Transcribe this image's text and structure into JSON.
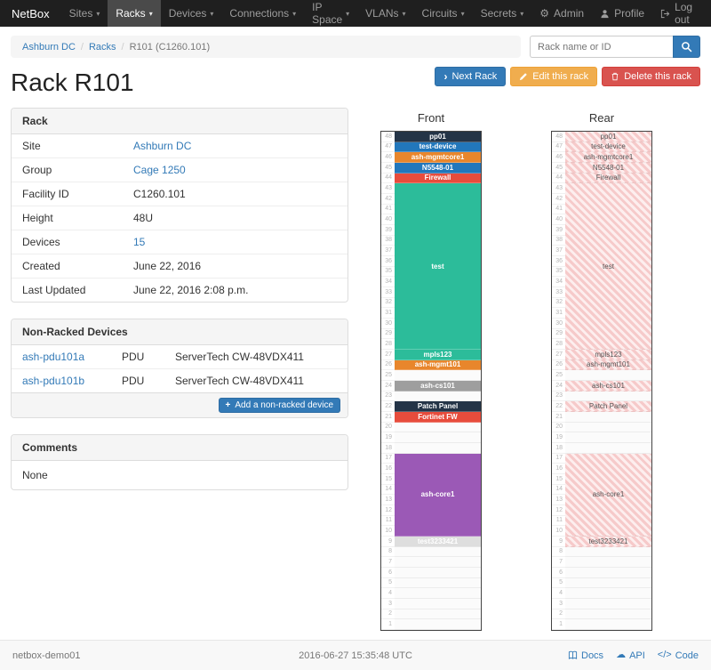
{
  "navbar": {
    "brand": "NetBox",
    "items": [
      {
        "label": "Sites"
      },
      {
        "label": "Racks",
        "active": true
      },
      {
        "label": "Devices"
      },
      {
        "label": "Connections"
      },
      {
        "label": "IP Space"
      },
      {
        "label": "VLANs"
      },
      {
        "label": "Circuits"
      },
      {
        "label": "Secrets"
      }
    ],
    "right": [
      {
        "label": "Admin",
        "icon": "gear-icon"
      },
      {
        "label": "Profile",
        "icon": "user-icon"
      },
      {
        "label": "Log out",
        "icon": "logout-icon"
      }
    ]
  },
  "breadcrumb": {
    "items": [
      {
        "label": "Ashburn DC",
        "link": true
      },
      {
        "label": "Racks",
        "link": true
      },
      {
        "label": "R101 (C1260.101)",
        "link": false
      }
    ]
  },
  "search": {
    "placeholder": "Rack name or ID",
    "icon": "search-icon"
  },
  "actions": {
    "next": "Next Rack",
    "edit": "Edit this rack",
    "delete": "Delete this rack"
  },
  "page": {
    "title": "Rack R101"
  },
  "rack_panel": {
    "title": "Rack",
    "rows": [
      {
        "label": "Site",
        "value": "Ashburn DC",
        "link": true
      },
      {
        "label": "Group",
        "value": "Cage 1250",
        "link": true
      },
      {
        "label": "Facility ID",
        "value": "C1260.101"
      },
      {
        "label": "Height",
        "value": "48U"
      },
      {
        "label": "Devices",
        "value": "15",
        "link": true
      },
      {
        "label": "Created",
        "value": "June 22, 2016"
      },
      {
        "label": "Last Updated",
        "value": "June 22, 2016 2:08 p.m."
      }
    ]
  },
  "nonracked_panel": {
    "title": "Non-Racked Devices",
    "rows": [
      {
        "name": "ash-pdu101a",
        "type": "PDU",
        "model": "ServerTech CW-48VDX411"
      },
      {
        "name": "ash-pdu101b",
        "type": "PDU",
        "model": "ServerTech CW-48VDX411"
      }
    ],
    "add_button": "Add a non-racked device"
  },
  "comments_panel": {
    "title": "Comments",
    "body": "None"
  },
  "elevations": {
    "units": 48,
    "front": {
      "title": "Front",
      "devices": [
        {
          "u": 48,
          "h": 1,
          "label": "pp01",
          "bg": "#243447"
        },
        {
          "u": 47,
          "h": 1,
          "label": "test-device",
          "bg": "#2277bb"
        },
        {
          "u": 46,
          "h": 1,
          "label": "ash-mgmtcore1",
          "bg": "#e8862c"
        },
        {
          "u": 45,
          "h": 1,
          "label": "N5548-01",
          "bg": "#2277bb"
        },
        {
          "u": 44,
          "h": 1,
          "label": "Firewall",
          "bg": "#e74c3c"
        },
        {
          "u": 43,
          "h": 16,
          "label": "test",
          "bg": "#2cbc9a"
        },
        {
          "u": 27,
          "h": 1,
          "label": "mpls123",
          "bg": "#2cbc9a"
        },
        {
          "u": 26,
          "h": 1,
          "label": "ash-mgmt101",
          "bg": "#e8862c"
        },
        {
          "u": 24,
          "h": 1,
          "label": "ash-cs101",
          "bg": "#9e9e9e"
        },
        {
          "u": 22,
          "h": 1,
          "label": "Patch Panel",
          "bg": "#243447"
        },
        {
          "u": 21,
          "h": 1,
          "label": "Fortinet FW",
          "bg": "#e74c3c"
        },
        {
          "u": 17,
          "h": 8,
          "label": "ash-core1",
          "bg": "#9b59b6"
        },
        {
          "u": 9,
          "h": 1,
          "label": "test3233421",
          "bg": "#dedede",
          "fg": "#ffffff"
        }
      ]
    },
    "rear": {
      "title": "Rear",
      "devices": [
        {
          "u": 48,
          "h": 1,
          "label": "pp01",
          "hatched": true
        },
        {
          "u": 47,
          "h": 1,
          "label": "test-device",
          "hatched": true
        },
        {
          "u": 46,
          "h": 1,
          "label": "ash-mgmtcore1",
          "hatched": true
        },
        {
          "u": 45,
          "h": 1,
          "label": "N5548-01",
          "hatched": true
        },
        {
          "u": 44,
          "h": 1,
          "label": "Firewall",
          "hatched": true
        },
        {
          "u": 43,
          "h": 16,
          "label": "test",
          "hatched": true
        },
        {
          "u": 27,
          "h": 1,
          "label": "mpls123",
          "hatched": true
        },
        {
          "u": 26,
          "h": 1,
          "label": "ash-mgmt101",
          "hatched": true
        },
        {
          "u": 24,
          "h": 1,
          "label": "ash-cs101",
          "hatched": true
        },
        {
          "u": 22,
          "h": 1,
          "label": "Patch Panel",
          "hatched": true
        },
        {
          "u": 17,
          "h": 8,
          "label": "ash-core1",
          "hatched": true
        },
        {
          "u": 9,
          "h": 1,
          "label": "test3233421",
          "hatched": true
        }
      ]
    }
  },
  "footer": {
    "hostname": "netbox-demo01",
    "timestamp": "2016-06-27 15:35:48 UTC",
    "links": [
      {
        "label": "Docs",
        "icon": "book-icon"
      },
      {
        "label": "API",
        "icon": "cloud-icon"
      },
      {
        "label": "Code",
        "icon": "code-icon"
      }
    ]
  },
  "colors": {
    "primary": "#337ab7",
    "warning": "#f0ad4e",
    "danger": "#d9534f",
    "hatch": "#f6caca"
  }
}
